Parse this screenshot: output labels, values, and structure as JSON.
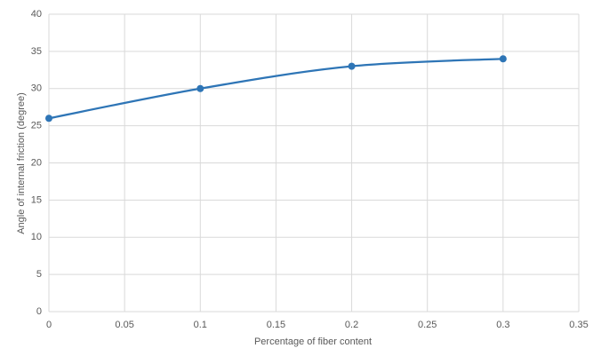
{
  "chart_data": {
    "type": "line",
    "smooth": true,
    "markers": true,
    "x": [
      0,
      0.1,
      0.2,
      0.3
    ],
    "values": [
      26,
      30,
      33,
      34
    ],
    "color": "#2e75b6",
    "xlabel": "Percentage of fiber content",
    "ylabel": "Angle of internal friction (degree)",
    "xlim": [
      0,
      0.35
    ],
    "xticks": [
      0,
      0.05,
      0.1,
      0.15,
      0.2,
      0.25,
      0.3,
      0.35
    ],
    "ylim": [
      0,
      40
    ],
    "yticks": [
      0,
      5,
      10,
      15,
      20,
      25,
      30,
      35,
      40
    ],
    "grid": true
  }
}
